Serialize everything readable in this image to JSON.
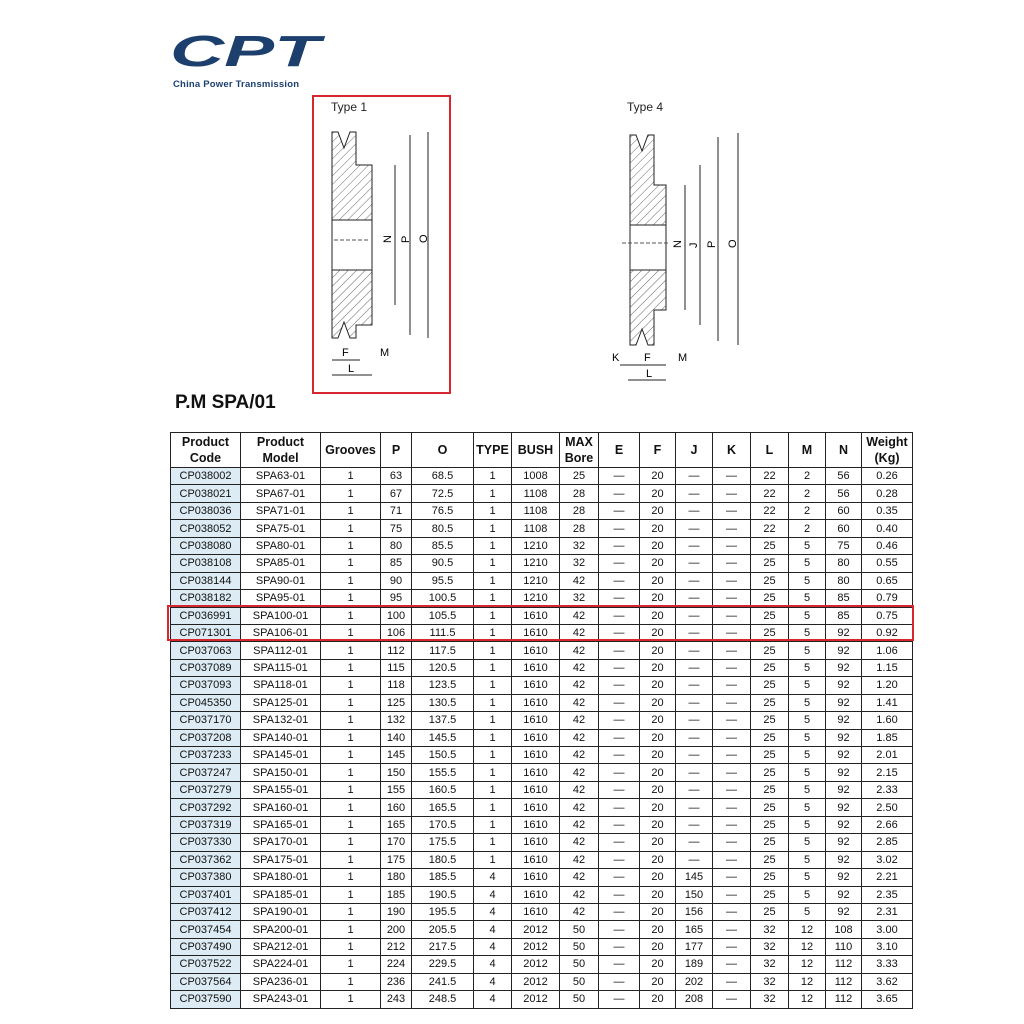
{
  "brand": {
    "logo_text": "CPT",
    "tagline": "China Power Transmission",
    "color": "#1c3f6e"
  },
  "diagrams": {
    "type1": {
      "label": "Type 1",
      "dims": [
        "N",
        "P",
        "O",
        "F",
        "M",
        "L"
      ]
    },
    "type4": {
      "label": "Type 4",
      "dims": [
        "N",
        "J",
        "P",
        "O",
        "K",
        "F",
        "M",
        "L"
      ]
    }
  },
  "title": "P.M SPA/01",
  "highlight_color": "#d8262e",
  "table": {
    "headers": [
      "Product Code",
      "Product Model",
      "Grooves",
      "P",
      "O",
      "TYPE",
      "BUSH",
      "MAX Bore",
      "E",
      "F",
      "J",
      "K",
      "L",
      "M",
      "N",
      "Weight (Kg)"
    ],
    "highlighted_rows": [
      "CP036991",
      "CP071301"
    ],
    "rows": [
      [
        "CP038002",
        "SPA63-01",
        "1",
        "63",
        "68.5",
        "1",
        "1008",
        "25",
        "—",
        "20",
        "—",
        "—",
        "22",
        "2",
        "56",
        "0.26"
      ],
      [
        "CP038021",
        "SPA67-01",
        "1",
        "67",
        "72.5",
        "1",
        "1108",
        "28",
        "—",
        "20",
        "—",
        "—",
        "22",
        "2",
        "56",
        "0.28"
      ],
      [
        "CP038036",
        "SPA71-01",
        "1",
        "71",
        "76.5",
        "1",
        "1108",
        "28",
        "—",
        "20",
        "—",
        "—",
        "22",
        "2",
        "60",
        "0.35"
      ],
      [
        "CP038052",
        "SPA75-01",
        "1",
        "75",
        "80.5",
        "1",
        "1108",
        "28",
        "—",
        "20",
        "—",
        "—",
        "22",
        "2",
        "60",
        "0.40"
      ],
      [
        "CP038080",
        "SPA80-01",
        "1",
        "80",
        "85.5",
        "1",
        "1210",
        "32",
        "—",
        "20",
        "—",
        "—",
        "25",
        "5",
        "75",
        "0.46"
      ],
      [
        "CP038108",
        "SPA85-01",
        "1",
        "85",
        "90.5",
        "1",
        "1210",
        "32",
        "—",
        "20",
        "—",
        "—",
        "25",
        "5",
        "80",
        "0.55"
      ],
      [
        "CP038144",
        "SPA90-01",
        "1",
        "90",
        "95.5",
        "1",
        "1210",
        "42",
        "—",
        "20",
        "—",
        "—",
        "25",
        "5",
        "80",
        "0.65"
      ],
      [
        "CP038182",
        "SPA95-01",
        "1",
        "95",
        "100.5",
        "1",
        "1210",
        "32",
        "—",
        "20",
        "—",
        "—",
        "25",
        "5",
        "85",
        "0.79"
      ],
      [
        "CP036991",
        "SPA100-01",
        "1",
        "100",
        "105.5",
        "1",
        "1610",
        "42",
        "—",
        "20",
        "—",
        "—",
        "25",
        "5",
        "85",
        "0.75"
      ],
      [
        "CP071301",
        "SPA106-01",
        "1",
        "106",
        "111.5",
        "1",
        "1610",
        "42",
        "—",
        "20",
        "—",
        "—",
        "25",
        "5",
        "92",
        "0.92"
      ],
      [
        "CP037063",
        "SPA112-01",
        "1",
        "112",
        "117.5",
        "1",
        "1610",
        "42",
        "—",
        "20",
        "—",
        "—",
        "25",
        "5",
        "92",
        "1.06"
      ],
      [
        "CP037089",
        "SPA115-01",
        "1",
        "115",
        "120.5",
        "1",
        "1610",
        "42",
        "—",
        "20",
        "—",
        "—",
        "25",
        "5",
        "92",
        "1.15"
      ],
      [
        "CP037093",
        "SPA118-01",
        "1",
        "118",
        "123.5",
        "1",
        "1610",
        "42",
        "—",
        "20",
        "—",
        "—",
        "25",
        "5",
        "92",
        "1.20"
      ],
      [
        "CP045350",
        "SPA125-01",
        "1",
        "125",
        "130.5",
        "1",
        "1610",
        "42",
        "—",
        "20",
        "—",
        "—",
        "25",
        "5",
        "92",
        "1.41"
      ],
      [
        "CP037170",
        "SPA132-01",
        "1",
        "132",
        "137.5",
        "1",
        "1610",
        "42",
        "—",
        "20",
        "—",
        "—",
        "25",
        "5",
        "92",
        "1.60"
      ],
      [
        "CP037208",
        "SPA140-01",
        "1",
        "140",
        "145.5",
        "1",
        "1610",
        "42",
        "—",
        "20",
        "—",
        "—",
        "25",
        "5",
        "92",
        "1.85"
      ],
      [
        "CP037233",
        "SPA145-01",
        "1",
        "145",
        "150.5",
        "1",
        "1610",
        "42",
        "—",
        "20",
        "—",
        "—",
        "25",
        "5",
        "92",
        "2.01"
      ],
      [
        "CP037247",
        "SPA150-01",
        "1",
        "150",
        "155.5",
        "1",
        "1610",
        "42",
        "—",
        "20",
        "—",
        "—",
        "25",
        "5",
        "92",
        "2.15"
      ],
      [
        "CP037279",
        "SPA155-01",
        "1",
        "155",
        "160.5",
        "1",
        "1610",
        "42",
        "—",
        "20",
        "—",
        "—",
        "25",
        "5",
        "92",
        "2.33"
      ],
      [
        "CP037292",
        "SPA160-01",
        "1",
        "160",
        "165.5",
        "1",
        "1610",
        "42",
        "—",
        "20",
        "—",
        "—",
        "25",
        "5",
        "92",
        "2.50"
      ],
      [
        "CP037319",
        "SPA165-01",
        "1",
        "165",
        "170.5",
        "1",
        "1610",
        "42",
        "—",
        "20",
        "—",
        "—",
        "25",
        "5",
        "92",
        "2.66"
      ],
      [
        "CP037330",
        "SPA170-01",
        "1",
        "170",
        "175.5",
        "1",
        "1610",
        "42",
        "—",
        "20",
        "—",
        "—",
        "25",
        "5",
        "92",
        "2.85"
      ],
      [
        "CP037362",
        "SPA175-01",
        "1",
        "175",
        "180.5",
        "1",
        "1610",
        "42",
        "—",
        "20",
        "—",
        "—",
        "25",
        "5",
        "92",
        "3.02"
      ],
      [
        "CP037380",
        "SPA180-01",
        "1",
        "180",
        "185.5",
        "4",
        "1610",
        "42",
        "—",
        "20",
        "145",
        "—",
        "25",
        "5",
        "92",
        "2.21"
      ],
      [
        "CP037401",
        "SPA185-01",
        "1",
        "185",
        "190.5",
        "4",
        "1610",
        "42",
        "—",
        "20",
        "150",
        "—",
        "25",
        "5",
        "92",
        "2.35"
      ],
      [
        "CP037412",
        "SPA190-01",
        "1",
        "190",
        "195.5",
        "4",
        "1610",
        "42",
        "—",
        "20",
        "156",
        "—",
        "25",
        "5",
        "92",
        "2.31"
      ],
      [
        "CP037454",
        "SPA200-01",
        "1",
        "200",
        "205.5",
        "4",
        "2012",
        "50",
        "—",
        "20",
        "165",
        "—",
        "32",
        "12",
        "108",
        "3.00"
      ],
      [
        "CP037490",
        "SPA212-01",
        "1",
        "212",
        "217.5",
        "4",
        "2012",
        "50",
        "—",
        "20",
        "177",
        "—",
        "32",
        "12",
        "110",
        "3.10"
      ],
      [
        "CP037522",
        "SPA224-01",
        "1",
        "224",
        "229.5",
        "4",
        "2012",
        "50",
        "—",
        "20",
        "189",
        "—",
        "32",
        "12",
        "112",
        "3.33"
      ],
      [
        "CP037564",
        "SPA236-01",
        "1",
        "236",
        "241.5",
        "4",
        "2012",
        "50",
        "—",
        "20",
        "202",
        "—",
        "32",
        "12",
        "112",
        "3.62"
      ],
      [
        "CP037590",
        "SPA243-01",
        "1",
        "243",
        "248.5",
        "4",
        "2012",
        "50",
        "—",
        "20",
        "208",
        "—",
        "32",
        "12",
        "112",
        "3.65"
      ]
    ]
  }
}
